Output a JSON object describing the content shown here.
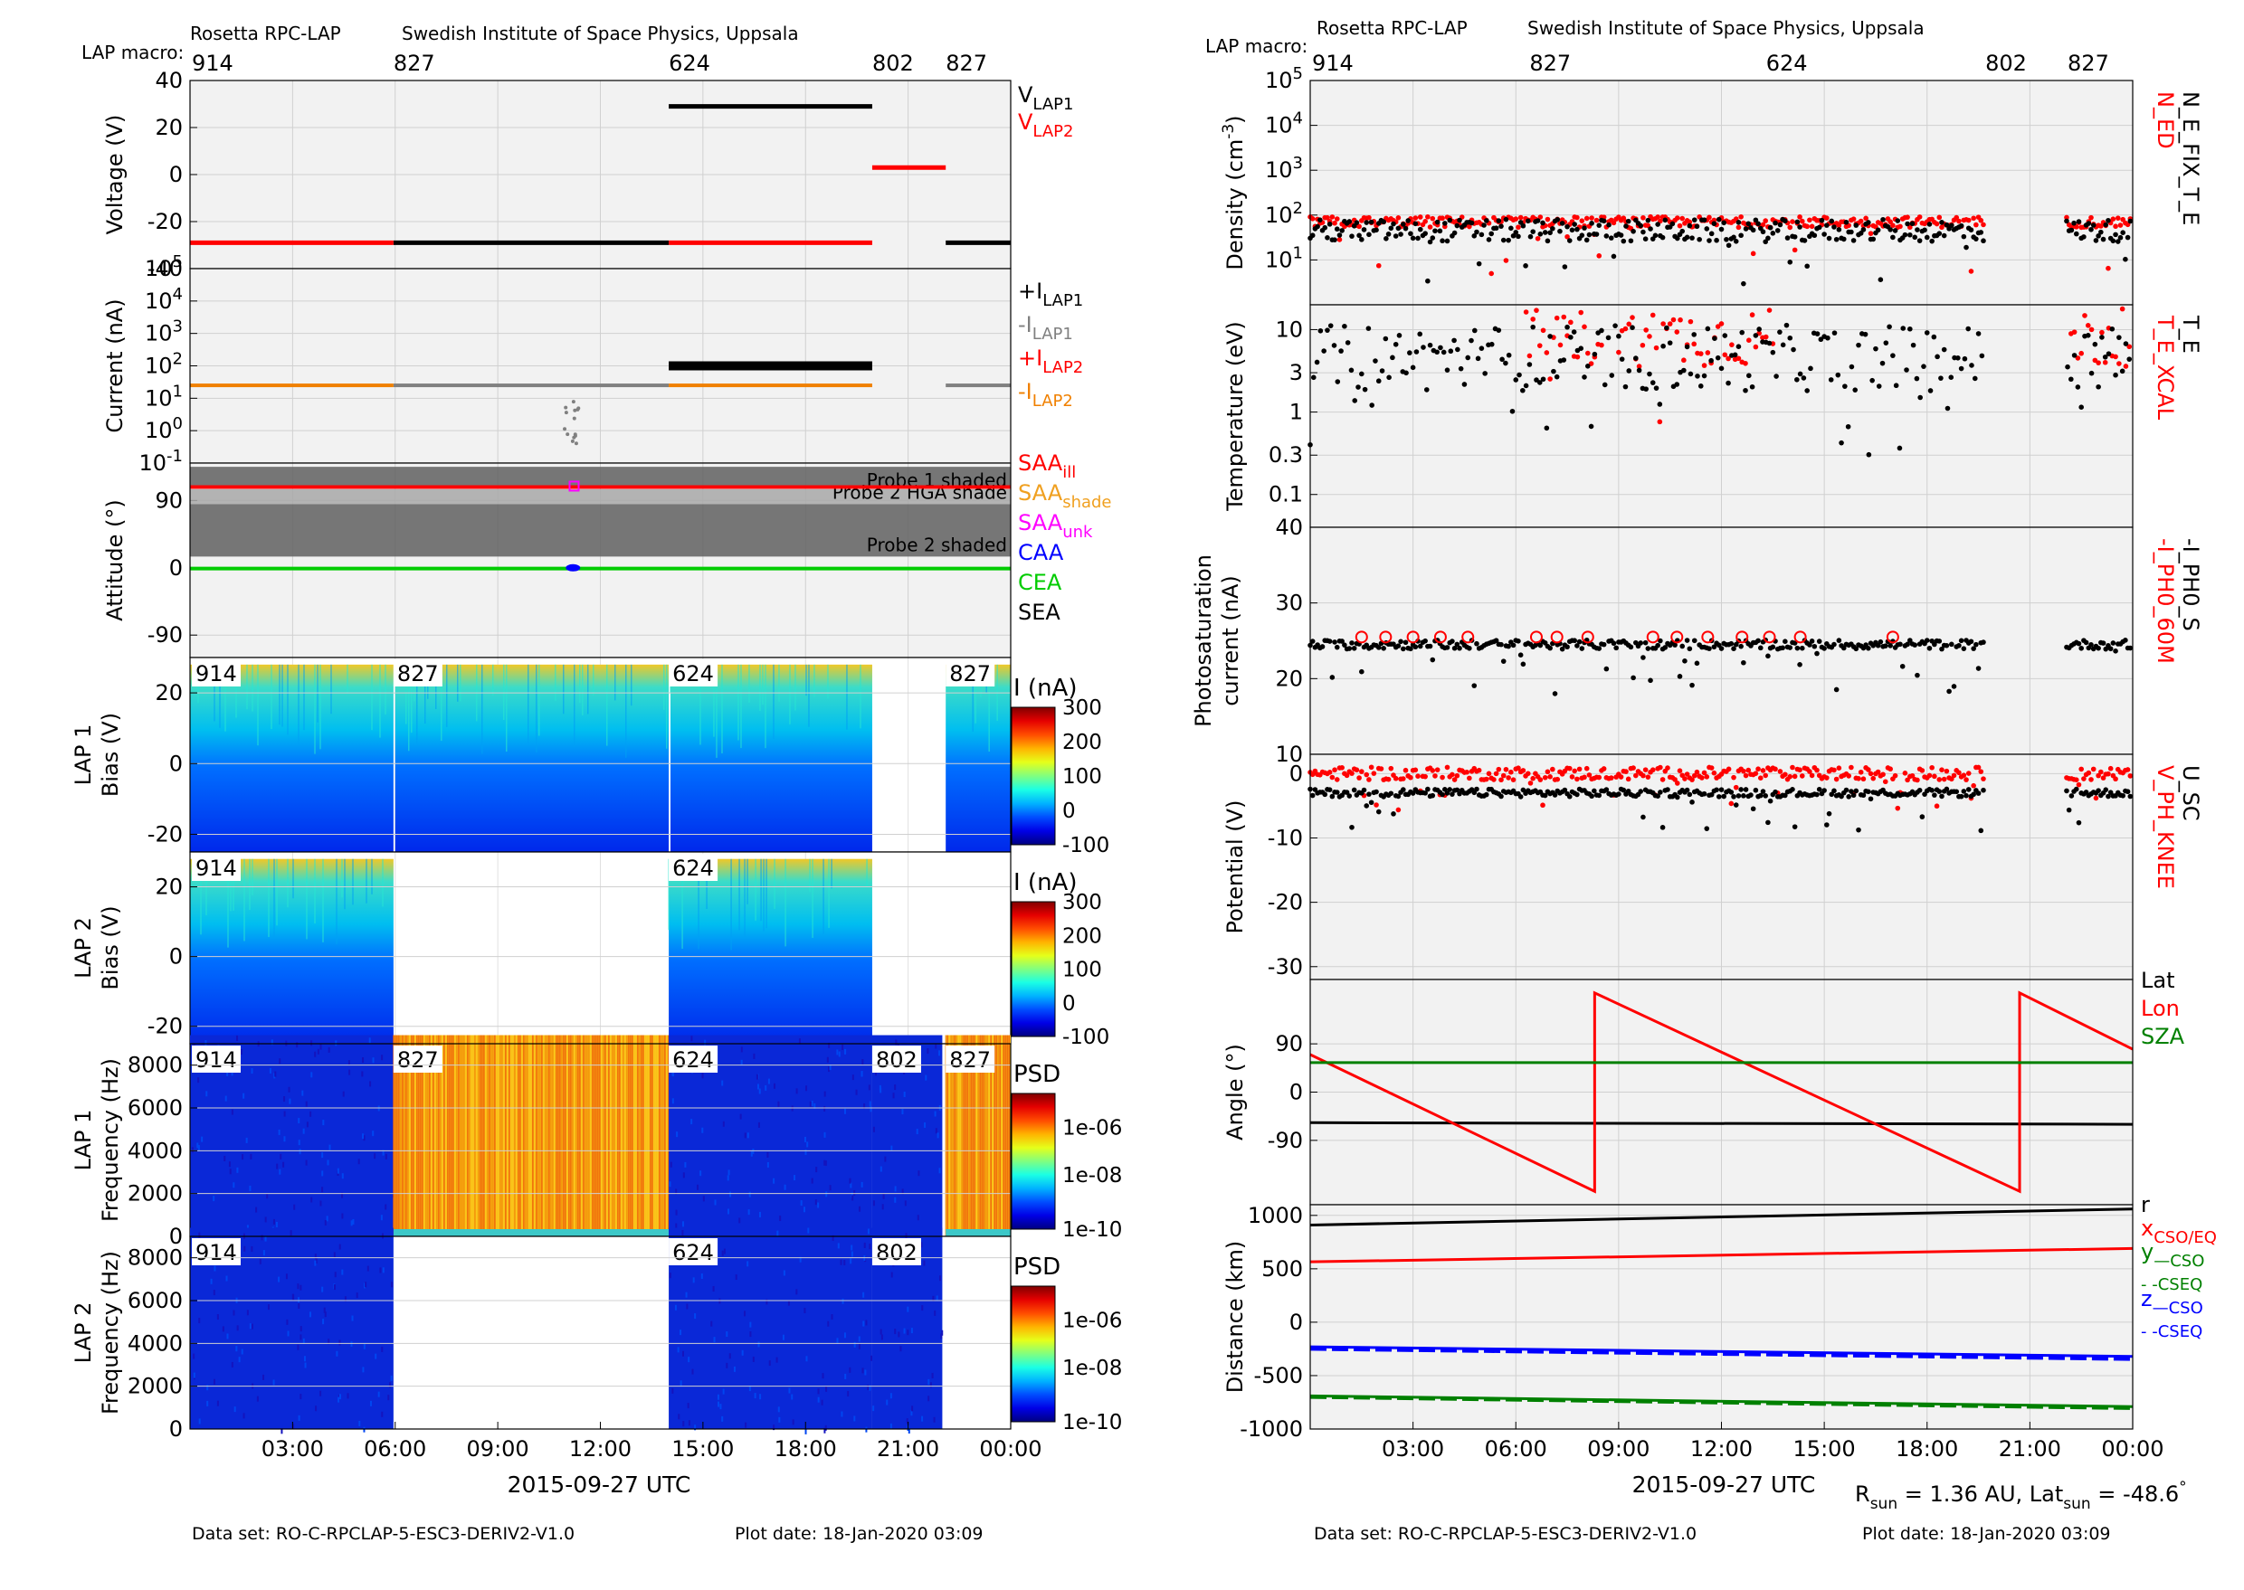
{
  "header": {
    "instrument": "Rosetta RPC-LAP",
    "institute": "Swedish Institute of Space Physics, Uppsala",
    "macro_label": "LAP macro:"
  },
  "footer": {
    "dataset": "Data set: RO-C-RPCLAP-5-ESC3-DERIV2-V1.0",
    "plot_date": "Plot date: 18-Jan-2020 03:09",
    "rsun_text": "R",
    "rsun_sub": "sun",
    "rsun_value": " = 1.36 AU, Lat",
    "lat_sub": "sun",
    "lat_value": " = -48.6",
    "lat_deg": "°"
  },
  "time_axis": {
    "label": "2015-09-27 UTC",
    "ticks": [
      "03:00",
      "06:00",
      "09:00",
      "12:00",
      "15:00",
      "18:00",
      "21:00",
      "00:00"
    ],
    "tick_hours": [
      3,
      6,
      9,
      12,
      15,
      18,
      21,
      24
    ],
    "range_hours": [
      0,
      24
    ]
  },
  "macros": {
    "left": [
      {
        "label": "914",
        "start": 0
      },
      {
        "label": "827",
        "start": 5.95
      },
      {
        "label": "624",
        "start": 14.0
      },
      {
        "label": "802",
        "start": 19.95
      },
      {
        "label": "827",
        "start": 22.1
      }
    ],
    "right": [
      {
        "label": "914",
        "start": 0
      },
      {
        "label": "827",
        "start": 6.4
      },
      {
        "label": "624",
        "start": 13.3
      },
      {
        "label": "802",
        "start": 19.7
      },
      {
        "label": "827",
        "start": 22.1
      }
    ]
  },
  "colors": {
    "black": "#000000",
    "red": "#ff0000",
    "gray": "#808080",
    "orange": "#f08000",
    "magenta": "#ff00ff",
    "blue": "#0000ff",
    "green": "#00cc00",
    "darkgreen": "#008000",
    "panel_bg": "#f2f2f2",
    "shade_dark": "#606060",
    "shade_mid": "#a8a8a8"
  },
  "chart_data": [
    {
      "type": "scatter",
      "id": "voltage",
      "ylabel": "Voltage (V)",
      "ylim": [
        -40,
        40
      ],
      "yticks": [
        -40,
        -20,
        0,
        20,
        40
      ],
      "legend": [
        {
          "text": "V",
          "sub": "LAP1",
          "color": "#000000"
        },
        {
          "text": "V",
          "sub": "LAP2",
          "color": "#ff0000"
        }
      ],
      "series": [
        {
          "name": "VLAP1",
          "color": "#000000",
          "segments": [
            [
              5.95,
              14.0,
              -29
            ],
            [
              14.0,
              19.95,
              29
            ],
            [
              22.1,
              24,
              -29
            ]
          ]
        },
        {
          "name": "VLAP2",
          "color": "#ff0000",
          "segments": [
            [
              0,
              5.95,
              -29
            ],
            [
              14.0,
              19.95,
              -29
            ],
            [
              19.95,
              22.1,
              3
            ]
          ]
        }
      ]
    },
    {
      "type": "scatter",
      "id": "current",
      "ylabel": "Current (nA)",
      "yscale": "log",
      "ylim": [
        0.1,
        100000
      ],
      "yticks": [
        {
          "b": "10",
          "e": "-1"
        },
        {
          "b": "10",
          "e": "0"
        },
        {
          "b": "10",
          "e": "1"
        },
        {
          "b": "10",
          "e": "2"
        },
        {
          "b": "10",
          "e": "3"
        },
        {
          "b": "10",
          "e": "4"
        },
        {
          "b": "10",
          "e": "5"
        }
      ],
      "legend": [
        {
          "text": "+I",
          "sub": "LAP1",
          "color": "#000000"
        },
        {
          "text": "-I",
          "sub": "LAP1",
          "color": "#808080"
        },
        {
          "text": "+I",
          "sub": "LAP2",
          "color": "#ff0000"
        },
        {
          "text": "-I",
          "sub": "LAP2",
          "color": "#f08000"
        }
      ],
      "series": [
        {
          "name": "+ILAP1",
          "color": "#000000",
          "segments": [
            [
              14.0,
              19.95,
              100
            ]
          ]
        },
        {
          "name": "-ILAP1",
          "color": "#808080",
          "segments": [
            [
              5.95,
              14.0,
              25
            ],
            [
              22.1,
              24,
              25
            ]
          ]
        },
        {
          "name": "-ILAP2",
          "color": "#f08000",
          "segments": [
            [
              0,
              5.95,
              25
            ],
            [
              14.0,
              19.95,
              25
            ]
          ]
        }
      ]
    },
    {
      "type": "line",
      "id": "attitude",
      "ylabel": "Attitude (°)",
      "ylim": [
        -120,
        140
      ],
      "yticks": [
        -90,
        0,
        90
      ],
      "shades": [
        {
          "label": "Probe 1 shaded",
          "from": 110,
          "to": 135
        },
        {
          "label": "Probe 2 HGA shade",
          "from": 85,
          "to": 105
        },
        {
          "label": "Probe 2 shaded",
          "from": 15,
          "to": 85
        }
      ],
      "legend": [
        {
          "text": "SAA",
          "sub": "ill",
          "color": "#ff0000"
        },
        {
          "text": "SAA",
          "sub": "shade",
          "color": "#f0a020"
        },
        {
          "text": "SAA",
          "sub": "unk",
          "color": "#ff00ff"
        },
        {
          "text": "CAA",
          "sub": "",
          "color": "#0000ff"
        },
        {
          "text": "CEA",
          "sub": "",
          "color": "#00cc00"
        },
        {
          "text": "SEA",
          "sub": "",
          "color": "#000000"
        }
      ],
      "series": [
        {
          "name": "SAA ill",
          "color": "#ff0000",
          "value": 108
        },
        {
          "name": "CEA",
          "color": "#00cc00",
          "value": -1
        }
      ]
    },
    {
      "type": "heatmap",
      "id": "lap1_bias",
      "ylabel": "LAP 1",
      "ylabel2": "Bias (V)",
      "ylim": [
        -25,
        30
      ],
      "yticks": [
        -20,
        0,
        20
      ],
      "colorbar_title": "I (nA)",
      "colorbar_ticks": [
        "300",
        "200",
        "100",
        "0",
        "-100"
      ],
      "segments": [
        [
          0,
          5.95
        ],
        [
          6.0,
          14.0
        ],
        [
          14.05,
          19.95
        ],
        [
          22.1,
          24
        ]
      ],
      "top_labels": [
        {
          "label": "914",
          "start": 0
        },
        {
          "label": "827",
          "start": 5.95
        },
        {
          "label": "624",
          "start": 14.0
        },
        {
          "label": "827",
          "start": 22.1
        }
      ]
    },
    {
      "type": "heatmap",
      "id": "lap2_bias",
      "ylabel": "LAP 2",
      "ylabel2": "Bias (V)",
      "ylim": [
        -25,
        30
      ],
      "yticks": [
        -20,
        0,
        20
      ],
      "colorbar_title": "I (nA)",
      "colorbar_ticks": [
        "300",
        "200",
        "100",
        "0",
        "-100"
      ],
      "segments": [
        [
          0,
          5.95
        ],
        [
          14.0,
          19.95
        ]
      ],
      "top_labels": [
        {
          "label": "914",
          "start": 0
        },
        {
          "label": "624",
          "start": 14.0
        }
      ]
    },
    {
      "type": "heatmap",
      "id": "lap1_freq",
      "ylabel": "LAP 1",
      "ylabel2": "Frequency (Hz)",
      "ylim": [
        0,
        9000
      ],
      "yticks": [
        0,
        2000,
        4000,
        6000,
        8000
      ],
      "colorbar_title": "PSD",
      "colorbar_ticks": [
        "1e-06",
        "1e-08",
        "1e-10"
      ],
      "segments": [
        [
          0,
          5.95,
          "low"
        ],
        [
          5.95,
          14.0,
          "high"
        ],
        [
          14.0,
          19.95,
          "low"
        ],
        [
          19.95,
          22.0,
          "low"
        ],
        [
          22.1,
          24,
          "high"
        ]
      ],
      "top_labels": [
        {
          "label": "914",
          "start": 0
        },
        {
          "label": "827",
          "start": 5.95
        },
        {
          "label": "624",
          "start": 14.0
        },
        {
          "label": "802",
          "start": 19.95
        },
        {
          "label": "827",
          "start": 22.1
        }
      ]
    },
    {
      "type": "heatmap",
      "id": "lap2_freq",
      "ylabel": "LAP 2",
      "ylabel2": "Frequency (Hz)",
      "ylim": [
        0,
        9000
      ],
      "yticks": [
        0,
        2000,
        4000,
        6000,
        8000
      ],
      "colorbar_title": "PSD",
      "colorbar_ticks": [
        "1e-06",
        "1e-08",
        "1e-10"
      ],
      "segments": [
        [
          0,
          5.95,
          "low"
        ],
        [
          14.0,
          19.95,
          "low"
        ],
        [
          19.95,
          22.0,
          "low"
        ]
      ],
      "top_labels": [
        {
          "label": "914",
          "start": 0
        },
        {
          "label": "624",
          "start": 14.0
        },
        {
          "label": "802",
          "start": 19.95
        }
      ]
    },
    {
      "type": "scatter",
      "id": "density",
      "ylabel": "Density (cm",
      "ylabel_sup": "-3",
      "ylabel_end": ")",
      "yscale": "log",
      "ylim": [
        1,
        100000
      ],
      "yticks": [
        {
          "b": "10",
          "e": "1"
        },
        {
          "b": "10",
          "e": "2"
        },
        {
          "b": "10",
          "e": "3"
        },
        {
          "b": "10",
          "e": "4"
        },
        {
          "b": "10",
          "e": "5"
        }
      ],
      "side_labels": [
        {
          "text": "N_ED",
          "color": "#ff0000"
        },
        {
          "text": "N_E_FIX_T_E",
          "color": "#000000"
        }
      ],
      "series": [
        {
          "name": "N_ED",
          "color": "#ff0000",
          "level": 70,
          "spread": 0.12,
          "gaps": [
            [
              19.7,
              22.05
            ]
          ]
        },
        {
          "name": "N_E_FIX_T_E",
          "color": "#000000",
          "level": 45,
          "spread": 0.25,
          "gaps": [
            [
              19.7,
              22.05
            ]
          ]
        }
      ]
    },
    {
      "type": "scatter",
      "id": "temperature",
      "ylabel": "Temperature (eV)",
      "yscale": "log",
      "ylim": [
        0.04,
        20
      ],
      "yticks": [
        "0.1",
        "0.3",
        "1",
        "3",
        "10"
      ],
      "yticks_v": [
        0.1,
        0.3,
        1,
        3,
        10
      ],
      "side_labels": [
        {
          "text": "T_E_XCAL",
          "color": "#ff0000"
        },
        {
          "text": "T_E",
          "color": "#000000"
        }
      ],
      "series": [
        {
          "name": "T_E_XCAL",
          "color": "#ff0000",
          "level": 8,
          "spread": 0.35,
          "ranges": [
            [
              6.3,
              8.5
            ],
            [
              9.0,
              13.5
            ],
            [
              22.1,
              24
            ]
          ]
        },
        {
          "name": "T_E",
          "color": "#000000",
          "level": 4.5,
          "spread": 0.4,
          "gaps": [
            [
              19.7,
              22.05
            ]
          ]
        }
      ]
    },
    {
      "type": "scatter",
      "id": "photosat",
      "ylabel": "Photosaturation",
      "ylabel2": "current (nA)",
      "ylim": [
        10,
        40
      ],
      "yticks": [
        10,
        20,
        30,
        40
      ],
      "side_labels": [
        {
          "text": "-I_PH0_60M",
          "color": "#ff0000"
        },
        {
          "text": "-I_PH0_S",
          "color": "#000000"
        }
      ],
      "series": [
        {
          "name": "-I_PH0_S",
          "color": "#000000",
          "level": 24.5,
          "spread": 0.6,
          "gaps": [
            [
              19.7,
              22.05
            ]
          ]
        },
        {
          "name": "-I_PH0_60M",
          "color": "#ff0000",
          "values": [
            [
              1.5,
              25.5
            ],
            [
              2.2,
              25.5
            ],
            [
              3.0,
              25.5
            ],
            [
              3.8,
              25.5
            ],
            [
              4.6,
              25.5
            ],
            [
              6.6,
              25.5
            ],
            [
              7.2,
              25.5
            ],
            [
              8.1,
              25.5
            ],
            [
              10.0,
              25.5
            ],
            [
              10.7,
              25.5
            ],
            [
              11.6,
              25.5
            ],
            [
              12.6,
              25.5
            ],
            [
              13.4,
              25.5
            ],
            [
              14.3,
              25.5
            ],
            [
              17.0,
              25.5
            ]
          ]
        }
      ]
    },
    {
      "type": "scatter",
      "id": "potential",
      "ylabel": "Potential (V)",
      "ylim": [
        -32,
        3
      ],
      "yticks": [
        -30,
        -20,
        -10,
        0
      ],
      "side_labels": [
        {
          "text": "V_PH_KNEE",
          "color": "#ff0000"
        },
        {
          "text": "U_SC",
          "color": "#000000"
        }
      ],
      "series": [
        {
          "name": "V_PH_KNEE",
          "color": "#ff0000",
          "level": 0,
          "spread": 1.0,
          "gaps": [
            [
              19.7,
              22.05
            ]
          ]
        },
        {
          "name": "U_SC",
          "color": "#000000",
          "level": -3,
          "spread": 0.6,
          "gaps": [
            [
              19.7,
              22.05
            ]
          ]
        }
      ]
    },
    {
      "type": "line",
      "id": "angle",
      "ylabel": "Angle (°)",
      "ylim": [
        -210,
        210
      ],
      "yticks": [
        -90,
        0,
        90
      ],
      "legend": [
        {
          "text": "Lat",
          "sub": "",
          "color": "#000000"
        },
        {
          "text": "Lon",
          "sub": "",
          "color": "#ff0000"
        },
        {
          "text": "SZA",
          "sub": "",
          "color": "#008000"
        }
      ],
      "series": [
        {
          "name": "Lat",
          "color": "#000000",
          "points": [
            [
              0,
              -57
            ],
            [
              24,
              -60
            ]
          ]
        },
        {
          "name": "Lon",
          "color": "#ff0000",
          "points": [
            [
              0,
              70
            ],
            [
              8.3,
              -185
            ],
            [
              8.3,
              185
            ],
            [
              20.7,
              -185
            ],
            [
              20.7,
              185
            ],
            [
              24,
              80
            ]
          ]
        },
        {
          "name": "SZA",
          "color": "#008000",
          "points": [
            [
              0,
              55
            ],
            [
              24,
              55
            ]
          ]
        }
      ]
    },
    {
      "type": "line",
      "id": "distance",
      "ylabel": "Distance (km)",
      "ylim": [
        -1000,
        1100
      ],
      "yticks": [
        -1000,
        -500,
        0,
        500,
        1000
      ],
      "legend": [
        {
          "text": "r",
          "sub": "",
          "color": "#000000"
        },
        {
          "text": "x",
          "sub": "CSO/EQ",
          "color": "#ff0000"
        },
        {
          "text": "y",
          "sub": "—CSO",
          "color": "#008000"
        },
        {
          "text": "",
          "sub": "- -CSEQ",
          "color": "#008000"
        },
        {
          "text": "z",
          "sub": "—CSO",
          "color": "#0000ff"
        },
        {
          "text": "",
          "sub": "- -CSEQ",
          "color": "#0000ff"
        }
      ],
      "series": [
        {
          "name": "r",
          "color": "#000000",
          "points": [
            [
              0,
              910
            ],
            [
              24,
              1060
            ]
          ]
        },
        {
          "name": "x",
          "color": "#ff0000",
          "points": [
            [
              0,
              565
            ],
            [
              24,
              690
            ]
          ]
        },
        {
          "name": "z CSO",
          "color": "#0000ff",
          "points": [
            [
              0,
              -230
            ],
            [
              24,
              -320
            ]
          ]
        },
        {
          "name": "z CSEQ",
          "color": "#0000ff",
          "points": [
            [
              0,
              -250
            ],
            [
              24,
              -345
            ]
          ],
          "dash": true
        },
        {
          "name": "y CSO",
          "color": "#008000",
          "points": [
            [
              0,
              -690
            ],
            [
              24,
              -790
            ]
          ]
        },
        {
          "name": "y CSEQ",
          "color": "#008000",
          "points": [
            [
              0,
              -700
            ],
            [
              24,
              -805
            ]
          ],
          "dash": true
        }
      ]
    }
  ]
}
